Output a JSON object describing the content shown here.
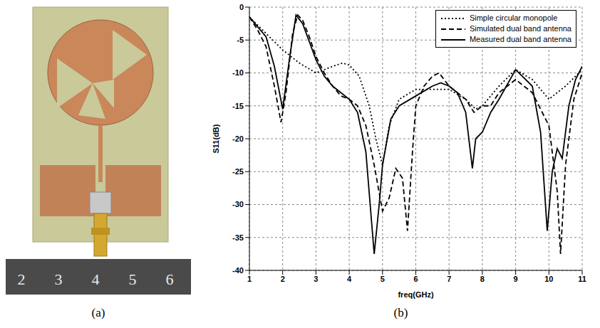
{
  "chart_data": {
    "type": "line",
    "x_label": "freq(GHz)",
    "y_label": "S11(dB)",
    "xlim": [
      1,
      11
    ],
    "xticks": [
      1,
      2,
      3,
      4,
      5,
      6,
      7,
      8,
      9,
      10,
      11
    ],
    "ylim": [
      -40,
      0
    ],
    "yticks": [
      -40,
      -35,
      -30,
      -25,
      -20,
      -15,
      -10,
      -5,
      0
    ],
    "grid": true,
    "legend": "top-right",
    "series": [
      {
        "name": "Simple circular monopole",
        "color": "#000000",
        "line_style": "dotted",
        "x": [
          1,
          1.5,
          2,
          2.5,
          3,
          3.5,
          3.8,
          4,
          4.3,
          4.6,
          4.8,
          5,
          5.2,
          5.5,
          6,
          6.5,
          7,
          7.5,
          7.8,
          8,
          8.5,
          9,
          9.5,
          10,
          10.5,
          11
        ],
        "values": [
          -1.5,
          -4,
          -6.5,
          -8.5,
          -10,
          -9,
          -8.5,
          -8.8,
          -10.5,
          -15,
          -20,
          -24,
          -18,
          -14,
          -12.5,
          -12.5,
          -12.5,
          -14,
          -15.5,
          -15,
          -12,
          -9.5,
          -11,
          -14,
          -12,
          -9.5
        ]
      },
      {
        "name": "Simulated dual band antenna",
        "color": "#000000",
        "line_style": "dashed",
        "x": [
          1,
          1.25,
          1.5,
          1.75,
          1.95,
          2.1,
          2.3,
          2.45,
          2.6,
          2.8,
          3,
          3.25,
          3.5,
          3.75,
          4,
          4.25,
          4.5,
          4.75,
          5,
          5.2,
          5.4,
          5.6,
          5.75,
          5.9,
          6,
          6.25,
          6.5,
          6.7,
          7,
          7.5,
          7.75,
          8,
          8.25,
          8.5,
          9,
          9.5,
          10,
          10.25,
          10.35,
          10.5,
          10.75,
          11
        ],
        "values": [
          -1.5,
          -3.5,
          -6,
          -12,
          -17.5,
          -13,
          -4,
          -1.2,
          -2,
          -4.5,
          -7.5,
          -10,
          -12,
          -13.5,
          -14,
          -15,
          -18,
          -24,
          -31,
          -29,
          -24.5,
          -26,
          -34,
          -22,
          -15,
          -12,
          -10.5,
          -10,
          -12,
          -14,
          -16,
          -15,
          -15,
          -13,
          -11,
          -13,
          -18,
          -28,
          -37.5,
          -24,
          -14,
          -10
        ]
      },
      {
        "name": "Measured dual band antenna",
        "color": "#000000",
        "line_style": "solid",
        "x": [
          1,
          1.5,
          1.75,
          2,
          2.2,
          2.4,
          2.6,
          3,
          3.25,
          3.5,
          4,
          4.25,
          4.5,
          4.75,
          4.9,
          5,
          5.25,
          5.5,
          6,
          6.5,
          6.75,
          7,
          7.25,
          7.5,
          7.7,
          7.8,
          8,
          8.25,
          8.5,
          9,
          9.5,
          9.75,
          9.95,
          10.1,
          10.25,
          10.4,
          10.6,
          10.8,
          11
        ],
        "values": [
          -1.5,
          -4.5,
          -9,
          -15.5,
          -8,
          -1.2,
          -2.5,
          -8,
          -10.5,
          -12,
          -14,
          -16,
          -22,
          -37.5,
          -30,
          -24,
          -17,
          -15,
          -13.5,
          -12,
          -11.5,
          -12,
          -13,
          -16,
          -24.5,
          -20,
          -19,
          -16,
          -14,
          -9.5,
          -12,
          -19,
          -34,
          -25,
          -21.5,
          -23,
          -15,
          -11,
          -9
        ]
      }
    ]
  },
  "figure": {
    "panel_labels": [
      "(a)",
      "(b)"
    ],
    "ruler_labels": [
      "2",
      "3",
      "4",
      "5",
      "6"
    ]
  }
}
